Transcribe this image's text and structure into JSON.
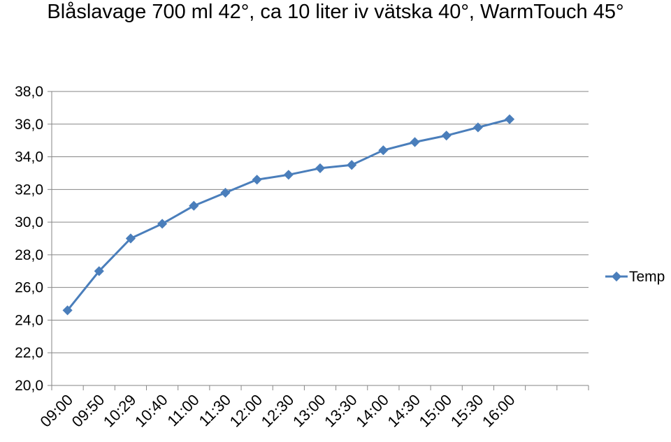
{
  "chart_data": {
    "type": "line",
    "title": "Blåslavage 700 ml 42°, ca 10 liter iv vätska 40°, WarmTouch 45°",
    "xlabel": "",
    "ylabel": "",
    "categories": [
      "09:00",
      "09:50",
      "10:29",
      "10:40",
      "11:00",
      "11:30",
      "12:00",
      "12:30",
      "13:00",
      "13:30",
      "14:00",
      "14:30",
      "15:00",
      "15:30",
      "16:00"
    ],
    "x_extra_slots": 2,
    "series": [
      {
        "name": "Temp",
        "values": [
          24.6,
          27.0,
          29.0,
          29.9,
          31.0,
          31.8,
          32.6,
          32.9,
          33.3,
          33.5,
          34.4,
          34.9,
          35.3,
          35.8,
          36.3
        ]
      }
    ],
    "ylim": [
      20,
      38
    ],
    "ystep": 2,
    "y_tick_labels": [
      "20,0",
      "22,0",
      "24,0",
      "26,0",
      "28,0",
      "30,0",
      "32,0",
      "34,0",
      "36,0",
      "38,0"
    ],
    "grid": true,
    "legend_position": "right",
    "colors": {
      "series": "#4A7EBB",
      "grid": "#868686",
      "axis": "#868686"
    }
  }
}
